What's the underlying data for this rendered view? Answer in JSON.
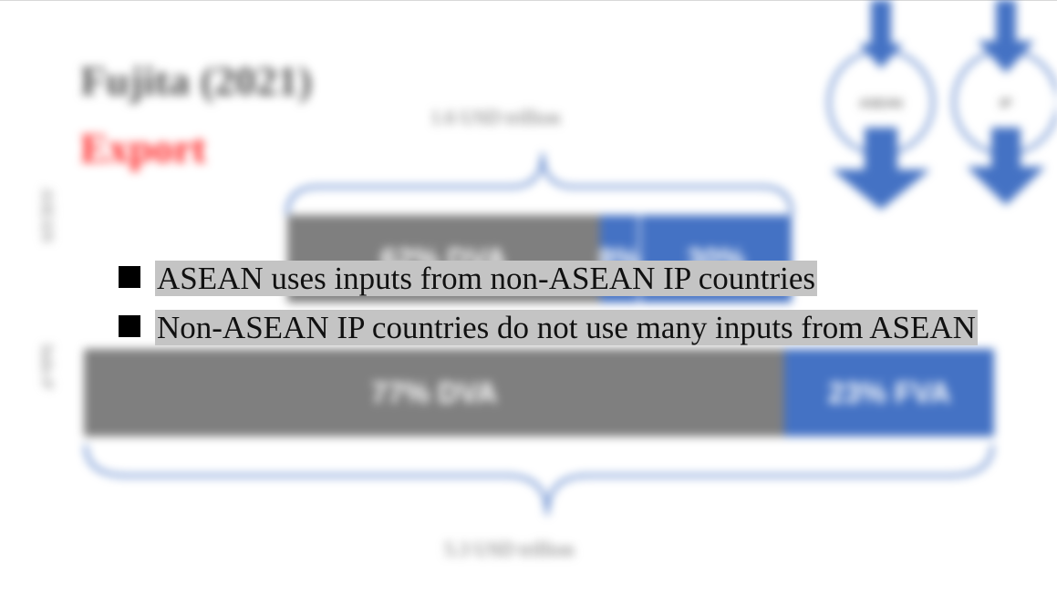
{
  "slide": {
    "title": "Fujita (2021)",
    "subtitle": "Export",
    "colors": {
      "title": "#555555",
      "subtitle": "#ff2b2b",
      "grey_bar": "#7f7f7f",
      "blue_bar": "#4472c4",
      "highlight": "#c4c4c4"
    }
  },
  "chart_data": {
    "type": "bar",
    "orientation": "horizontal-stacked",
    "rows": [
      {
        "name": "ASEAN",
        "total_label": "1.6 USD trillion",
        "segments": [
          {
            "label": "62% DVA",
            "value": 62
          },
          {
            "label": "8%",
            "value": 8
          },
          {
            "label": "30%",
            "value": 30
          }
        ]
      },
      {
        "name": "Indo-P",
        "total_label": "5.3 USD trillion",
        "segments": [
          {
            "label": "77% DVA",
            "value": 77
          },
          {
            "label": "23% FVA",
            "value": 23
          }
        ]
      }
    ],
    "diagram_labels": [
      "ASEAN",
      "IP"
    ]
  },
  "bullets": [
    "ASEAN uses inputs from non-ASEAN IP countries",
    "Non-ASEAN IP countries do not use many inputs from ASEAN"
  ]
}
